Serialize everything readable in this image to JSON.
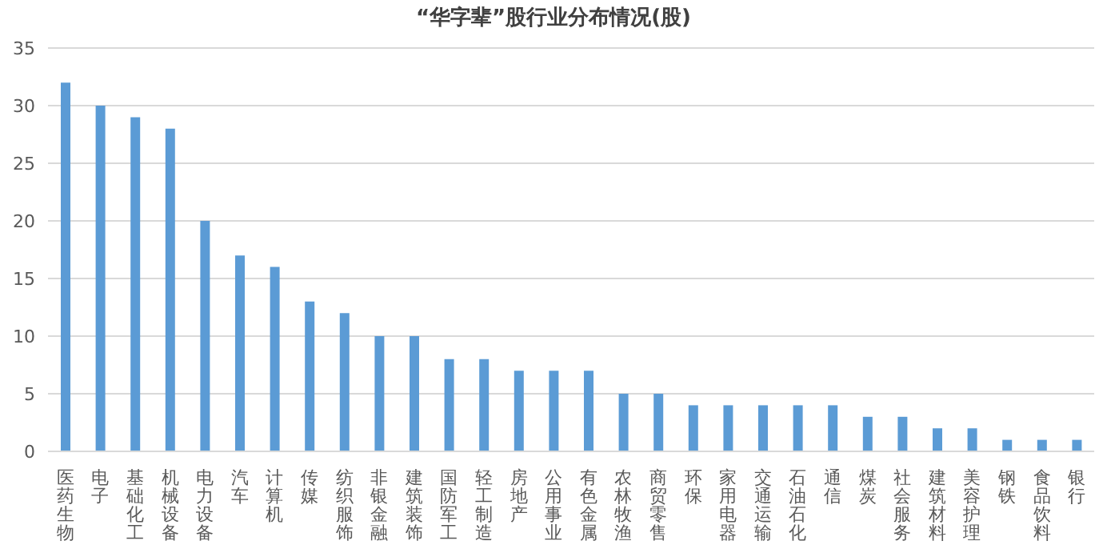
{
  "chart_data": {
    "type": "bar",
    "title": "“华字辈”股行业分布情况(股)",
    "categories": [
      "医药生物",
      "电子",
      "基础化工",
      "机械设备",
      "电力设备",
      "汽车",
      "计算机",
      "传媒",
      "纺织服饰",
      "非银金融",
      "建筑装饰",
      "国防军工",
      "轻工制造",
      "房地产",
      "公用事业",
      "有色金属",
      "农林牧渔",
      "商贸零售",
      "环保",
      "家用电器",
      "交通运输",
      "石油石化",
      "通信",
      "煤炭",
      "社会服务",
      "建筑材料",
      "美容护理",
      "钢铁",
      "食品饮料",
      "银行"
    ],
    "values": [
      32,
      30,
      29,
      28,
      20,
      17,
      16,
      13,
      12,
      10,
      10,
      8,
      8,
      7,
      7,
      7,
      5,
      5,
      4,
      4,
      4,
      4,
      4,
      3,
      3,
      2,
      2,
      1,
      1,
      1
    ],
    "color": "#5b9bd5",
    "ylim": [
      0,
      35
    ],
    "yticks": [
      0,
      5,
      10,
      15,
      20,
      25,
      30,
      35
    ],
    "grid": "y",
    "legend": false
  }
}
